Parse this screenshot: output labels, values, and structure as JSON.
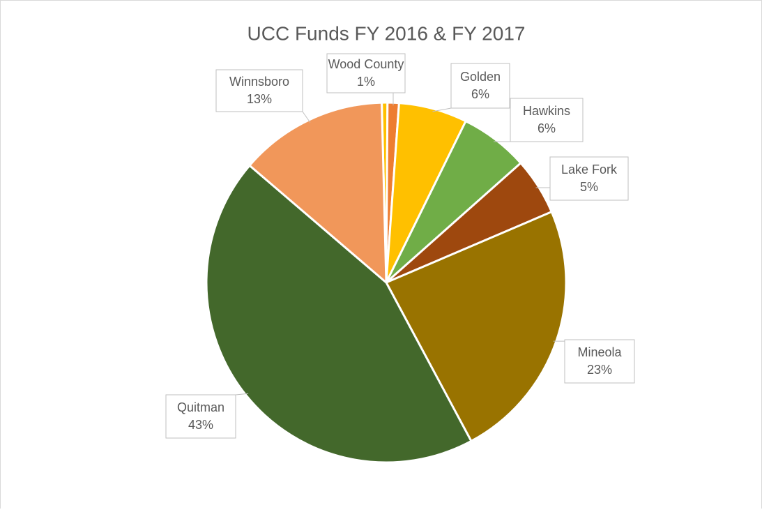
{
  "chart_data": {
    "type": "pie",
    "title": "UCC Funds FY 2016 & FY 2017",
    "categories": [
      null,
      "Wood County",
      "Golden",
      "Hawkins",
      "Lake Fork",
      "Mineola",
      "Quitman",
      "Winnsboro"
    ],
    "values": [
      0.5,
      1,
      6,
      6,
      5,
      23,
      43,
      13
    ],
    "value_labels": [
      null,
      "1%",
      "6%",
      "6%",
      "5%",
      "23%",
      "43%",
      "13%"
    ],
    "colors": [
      "#ffc000",
      "#ed7d31",
      "#ffc000",
      "#70ad47",
      "#9e480e",
      "#997300",
      "#43682b",
      "#f1975a"
    ]
  }
}
